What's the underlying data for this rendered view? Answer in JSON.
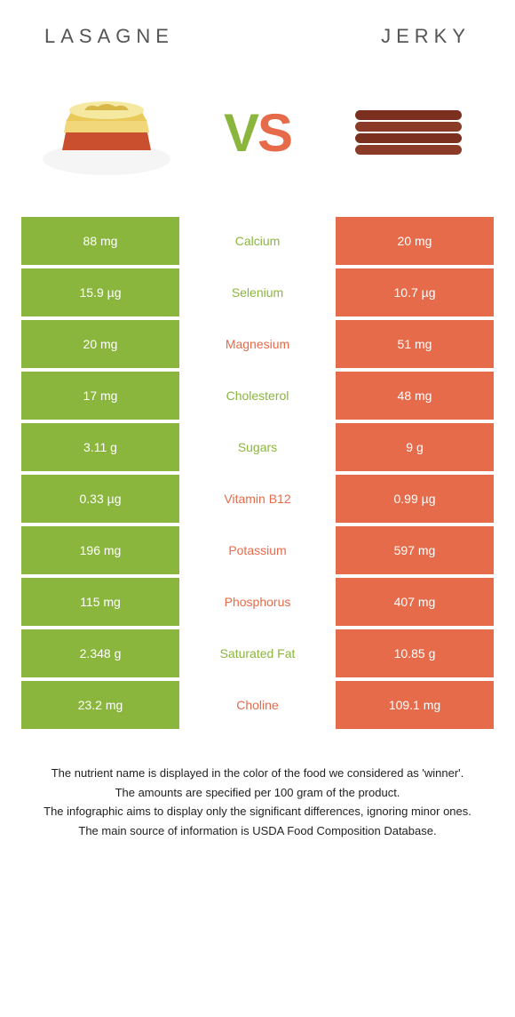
{
  "header": {
    "left_title": "Lasagne",
    "right_title": "Jerky"
  },
  "vs": {
    "v": "V",
    "s": "S"
  },
  "colors": {
    "left_bg": "#8bb63e",
    "right_bg": "#e56b4a",
    "left_text": "#8bb63e",
    "right_text": "#e56b4a",
    "footer_text": "#222222"
  },
  "table": {
    "rows": [
      {
        "nutrient": "Calcium",
        "left": "88 mg",
        "right": "20 mg",
        "winner": "left"
      },
      {
        "nutrient": "Selenium",
        "left": "15.9 µg",
        "right": "10.7 µg",
        "winner": "left"
      },
      {
        "nutrient": "Magnesium",
        "left": "20 mg",
        "right": "51 mg",
        "winner": "right"
      },
      {
        "nutrient": "Cholesterol",
        "left": "17 mg",
        "right": "48 mg",
        "winner": "left"
      },
      {
        "nutrient": "Sugars",
        "left": "3.11 g",
        "right": "9 g",
        "winner": "left"
      },
      {
        "nutrient": "Vitamin B12",
        "left": "0.33 µg",
        "right": "0.99 µg",
        "winner": "right"
      },
      {
        "nutrient": "Potassium",
        "left": "196 mg",
        "right": "597 mg",
        "winner": "right"
      },
      {
        "nutrient": "Phosphorus",
        "left": "115 mg",
        "right": "407 mg",
        "winner": "right"
      },
      {
        "nutrient": "Saturated Fat",
        "left": "2.348 g",
        "right": "10.85 g",
        "winner": "left"
      },
      {
        "nutrient": "Choline",
        "left": "23.2 mg",
        "right": "109.1 mg",
        "winner": "right"
      }
    ]
  },
  "footer": {
    "line1": "The nutrient name is displayed in the color of the food we considered as 'winner'.",
    "line2": "The amounts are specified per 100 gram of the product.",
    "line3": "The infographic aims to display only the significant differences, ignoring minor ones.",
    "line4": "The main source of information is USDA Food Composition Database."
  }
}
